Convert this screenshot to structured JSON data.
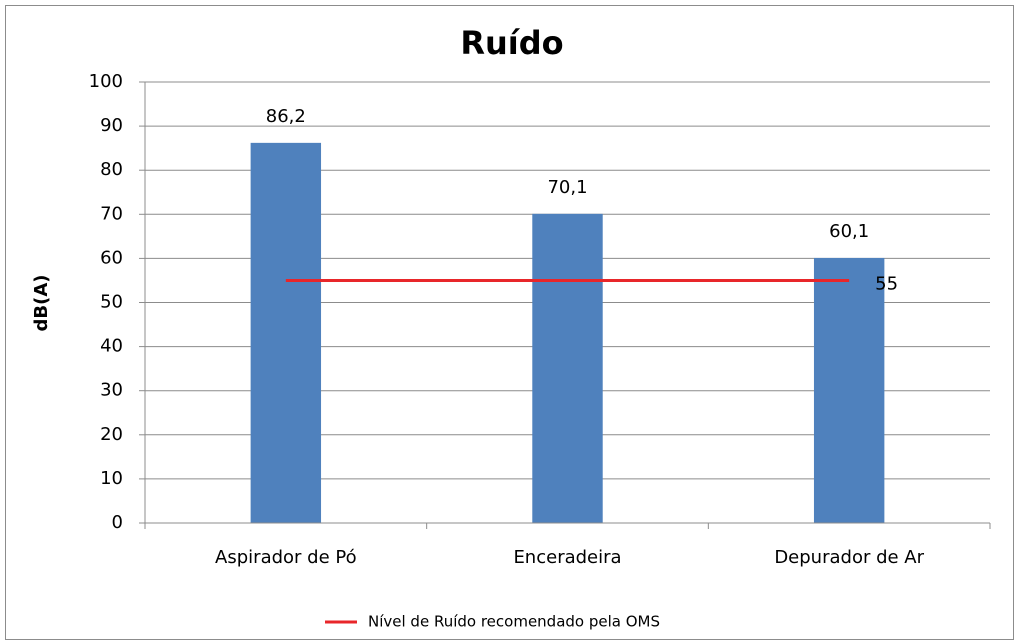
{
  "chart_data": {
    "type": "bar",
    "title": "Ruído",
    "y_label": "dB(A)",
    "categories": [
      "Aspirador de Pó",
      "Enceradeira",
      "Depurador de Ar"
    ],
    "series": [
      {
        "color": "#4f81bd",
        "values": [
          86.2,
          70.1,
          60.1
        ],
        "value_labels": [
          "86,2",
          "70,1",
          "60,1"
        ]
      },
      {
        "name": "Nível de Ruído recomendado pela OMS",
        "type": "line",
        "color": "#e8262a",
        "values": [
          55,
          55,
          55
        ],
        "value_labels": [
          null,
          null,
          "55"
        ]
      }
    ],
    "ylim": [
      0,
      100
    ],
    "yticks": [
      0,
      10,
      20,
      30,
      40,
      50,
      60,
      70,
      80,
      90,
      100
    ],
    "grid": true,
    "legend": "bottom"
  }
}
